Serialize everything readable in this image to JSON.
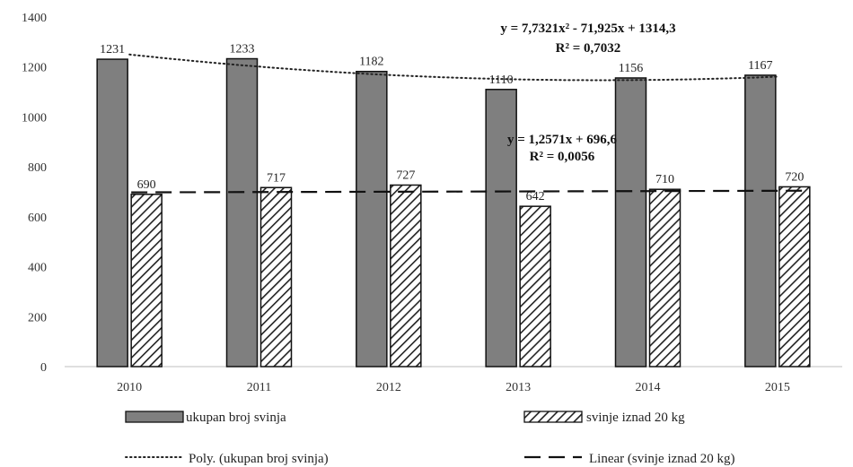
{
  "chart_data": {
    "type": "bar",
    "categories": [
      "2010",
      "2011",
      "2012",
      "2013",
      "2014",
      "2015"
    ],
    "series": [
      {
        "name": "ukupan broj svinja",
        "values": [
          1231,
          1233,
          1182,
          1110,
          1156,
          1167
        ],
        "pattern": "solid-gray",
        "color": "#7f7f7f"
      },
      {
        "name": "svinje iznad 20 kg",
        "values": [
          690,
          717,
          727,
          642,
          710,
          720
        ],
        "pattern": "diagonal-hatch",
        "color": "#222222"
      }
    ],
    "trendlines": [
      {
        "name": "Poly. (ukupan broj svinja)",
        "type": "polynomial",
        "order": 2,
        "series": "ukupan broj svinja",
        "style": "dotted",
        "coefficients": [
          7.7321,
          -71.925,
          1314.3
        ],
        "equation": "y = 7,7321x² - 71,925x + 1314,3",
        "r2": "R² = 0,7032"
      },
      {
        "name": "Linear (svinje iznad 20 kg)",
        "type": "linear",
        "series": "svinje iznad 20 kg",
        "style": "dashed",
        "coefficients": [
          1.2571,
          696.6
        ],
        "equation": "y = 1,2571x + 696,6",
        "r2": "R² = 0,0056"
      }
    ],
    "yticks": [
      "0",
      "200",
      "400",
      "600",
      "800",
      "1000",
      "1200",
      "1400"
    ],
    "ylim": [
      0,
      1400
    ],
    "grid": false,
    "legend_position": "bottom"
  }
}
